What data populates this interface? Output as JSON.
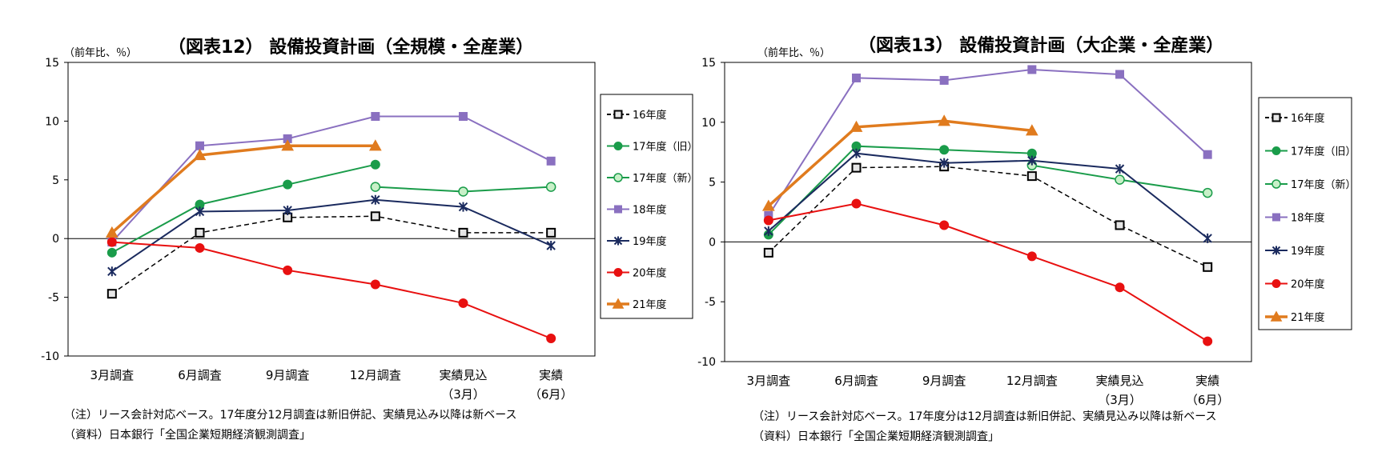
{
  "charts": [
    {
      "title": "（図表12） 設備投資計画（全規模・全産業）",
      "unit": "（前年比、％）",
      "note1": "（注）リース会計対応ベース。17年度分12月調査は新旧併記、実績見込み以降は新ベース",
      "note2": "（資料）日本銀行「全国企業短期経済観測調査」"
    },
    {
      "title": "（図表13） 設備投資計画（大企業・全産業）",
      "unit": "（前年比、％）",
      "note1": "（注）リース会計対応ベース。17年度分は12月調査は新旧併記、実績見込み以降は新ベース",
      "note2": "（資料）日本銀行「全国企業短期経済観測調査」"
    }
  ],
  "chart_data": [
    {
      "type": "line",
      "title": "（図表12） 設備投資計画（全規模・全産業）",
      "ylabel": "（前年比、％）",
      "ylim": [
        -10,
        15
      ],
      "yticks": [
        -10,
        -5,
        0,
        5,
        10,
        15
      ],
      "categories": [
        {
          "line1": "3月調査",
          "line2": ""
        },
        {
          "line1": "6月調査",
          "line2": ""
        },
        {
          "line1": "9月調査",
          "line2": ""
        },
        {
          "line1": "12月調査",
          "line2": ""
        },
        {
          "line1": "実績見込",
          "line2": "（3月）"
        },
        {
          "line1": "実績",
          "line2": "（6月）"
        }
      ],
      "legend_position": "right",
      "series": [
        {
          "name": "16年度",
          "color": "#000000",
          "marker": "square-open",
          "dashed": true,
          "values": [
            -4.7,
            0.5,
            1.8,
            1.9,
            0.5,
            0.5
          ]
        },
        {
          "name": "17年度（旧）",
          "color": "#1a9c4a",
          "marker": "circle",
          "values": [
            -1.2,
            2.9,
            4.6,
            6.3,
            null,
            null
          ]
        },
        {
          "name": "17年度（新）",
          "color": "#1a9c4a",
          "marker": "circle-open",
          "fill": "#c8f0c8",
          "values": [
            null,
            null,
            null,
            4.4,
            4.0,
            4.4
          ]
        },
        {
          "name": "18年度",
          "color": "#8a70c0",
          "marker": "square",
          "values": [
            -0.3,
            7.9,
            8.5,
            10.4,
            10.4,
            6.6
          ]
        },
        {
          "name": "19年度",
          "color": "#1a2a5e",
          "marker": "star",
          "values": [
            -2.8,
            2.3,
            2.4,
            3.3,
            2.7,
            -0.6
          ]
        },
        {
          "name": "20年度",
          "color": "#e81010",
          "marker": "circle",
          "values": [
            -0.3,
            -0.8,
            -2.7,
            -3.9,
            -5.5,
            -8.5
          ]
        },
        {
          "name": "21年度",
          "color": "#e07b1e",
          "marker": "triangle",
          "thick": true,
          "values": [
            0.5,
            7.1,
            7.9,
            7.9,
            null,
            null
          ]
        }
      ]
    },
    {
      "type": "line",
      "title": "（図表13） 設備投資計画（大企業・全産業）",
      "ylabel": "（前年比、％）",
      "ylim": [
        -10,
        15
      ],
      "yticks": [
        -10,
        -5,
        0,
        5,
        10,
        15
      ],
      "categories": [
        {
          "line1": "3月調査",
          "line2": ""
        },
        {
          "line1": "6月調査",
          "line2": ""
        },
        {
          "line1": "9月調査",
          "line2": ""
        },
        {
          "line1": "12月調査",
          "line2": ""
        },
        {
          "line1": "実績見込",
          "line2": "（3月）"
        },
        {
          "line1": "実績",
          "line2": "（6月）"
        }
      ],
      "legend_position": "right",
      "series": [
        {
          "name": "16年度",
          "color": "#000000",
          "marker": "square-open",
          "dashed": true,
          "values": [
            -0.9,
            6.2,
            6.3,
            5.5,
            1.4,
            -2.1
          ]
        },
        {
          "name": "17年度（旧）",
          "color": "#1a9c4a",
          "marker": "circle",
          "values": [
            0.6,
            8.0,
            7.7,
            7.4,
            null,
            null
          ]
        },
        {
          "name": "17年度（新）",
          "color": "#1a9c4a",
          "marker": "circle-open",
          "fill": "#c8f0c8",
          "values": [
            null,
            null,
            null,
            6.4,
            5.2,
            4.1
          ]
        },
        {
          "name": "18年度",
          "color": "#8a70c0",
          "marker": "square",
          "values": [
            2.2,
            13.7,
            13.5,
            14.4,
            14.0,
            7.3
          ]
        },
        {
          "name": "19年度",
          "color": "#1a2a5e",
          "marker": "star",
          "values": [
            0.9,
            7.4,
            6.6,
            6.8,
            6.1,
            0.3
          ]
        },
        {
          "name": "20年度",
          "color": "#e81010",
          "marker": "circle",
          "values": [
            1.8,
            3.2,
            1.4,
            -1.2,
            -3.8,
            -8.3
          ]
        },
        {
          "name": "21年度",
          "color": "#e07b1e",
          "marker": "triangle",
          "thick": true,
          "values": [
            3.0,
            9.6,
            10.1,
            9.3,
            null,
            null
          ]
        }
      ]
    }
  ]
}
